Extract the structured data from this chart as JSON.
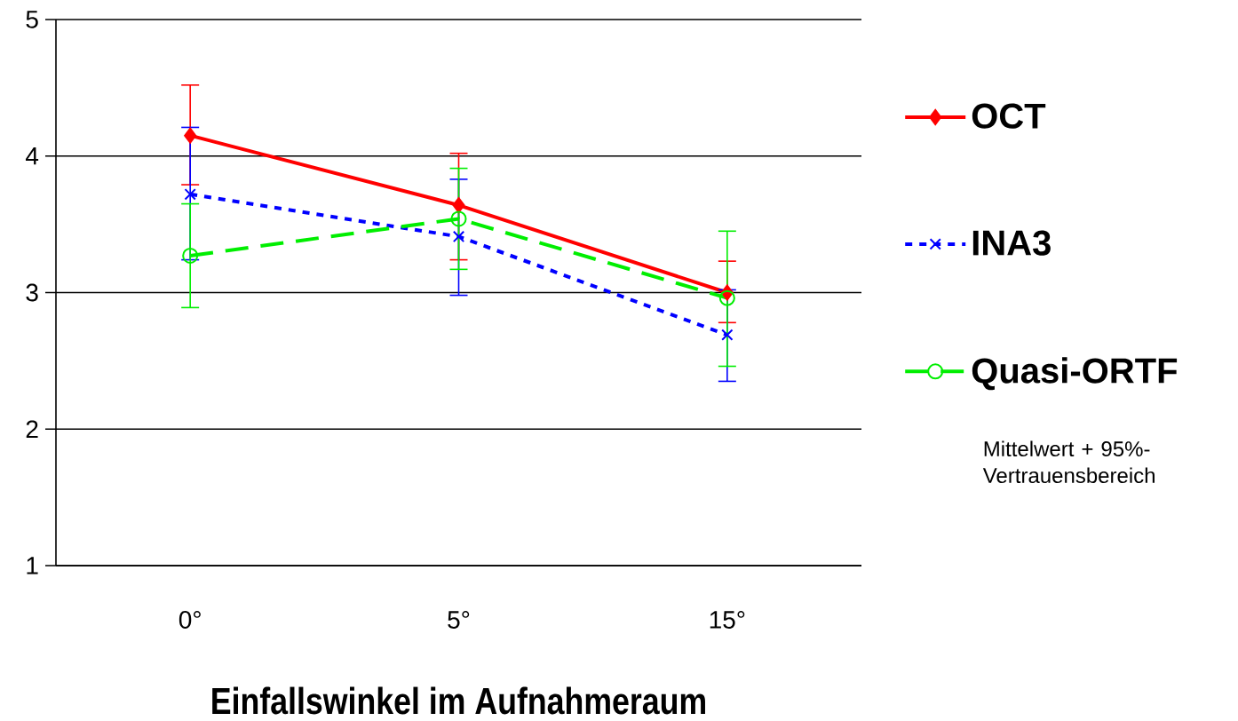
{
  "chart_data": {
    "type": "line",
    "xlabel": "Einfallswinkel im Aufnahmeraum",
    "categories": [
      "0°",
      "5°",
      "15°"
    ],
    "ylim": [
      1,
      5
    ],
    "yticks": [
      1,
      2,
      3,
      4,
      5
    ],
    "grid": "y",
    "legend": "right",
    "series": [
      {
        "name": "OCT",
        "color": "#ff0000",
        "marker": "diamond",
        "line_style": "solid",
        "values": [
          4.15,
          3.64,
          3.0
        ],
        "errors": [
          [
            3.79,
            4.52
          ],
          [
            3.24,
            4.02
          ],
          [
            2.78,
            3.23
          ]
        ]
      },
      {
        "name": "INA3",
        "color": "#0000ff",
        "marker": "cross",
        "line_style": "dotted",
        "values": [
          3.72,
          3.41,
          2.69
        ],
        "errors": [
          [
            3.24,
            4.21
          ],
          [
            2.98,
            3.83
          ],
          [
            2.35,
            3.02
          ]
        ]
      },
      {
        "name": "Quasi-ORTF",
        "color": "#00ee00",
        "marker": "circle",
        "line_style": "dashed",
        "values": [
          3.27,
          3.54,
          2.96
        ],
        "errors": [
          [
            2.89,
            3.65
          ],
          [
            3.17,
            3.91
          ],
          [
            2.46,
            3.45
          ]
        ]
      }
    ],
    "annotations": [
      "Mittelwert + 95%-Vertrauensbereich"
    ]
  }
}
